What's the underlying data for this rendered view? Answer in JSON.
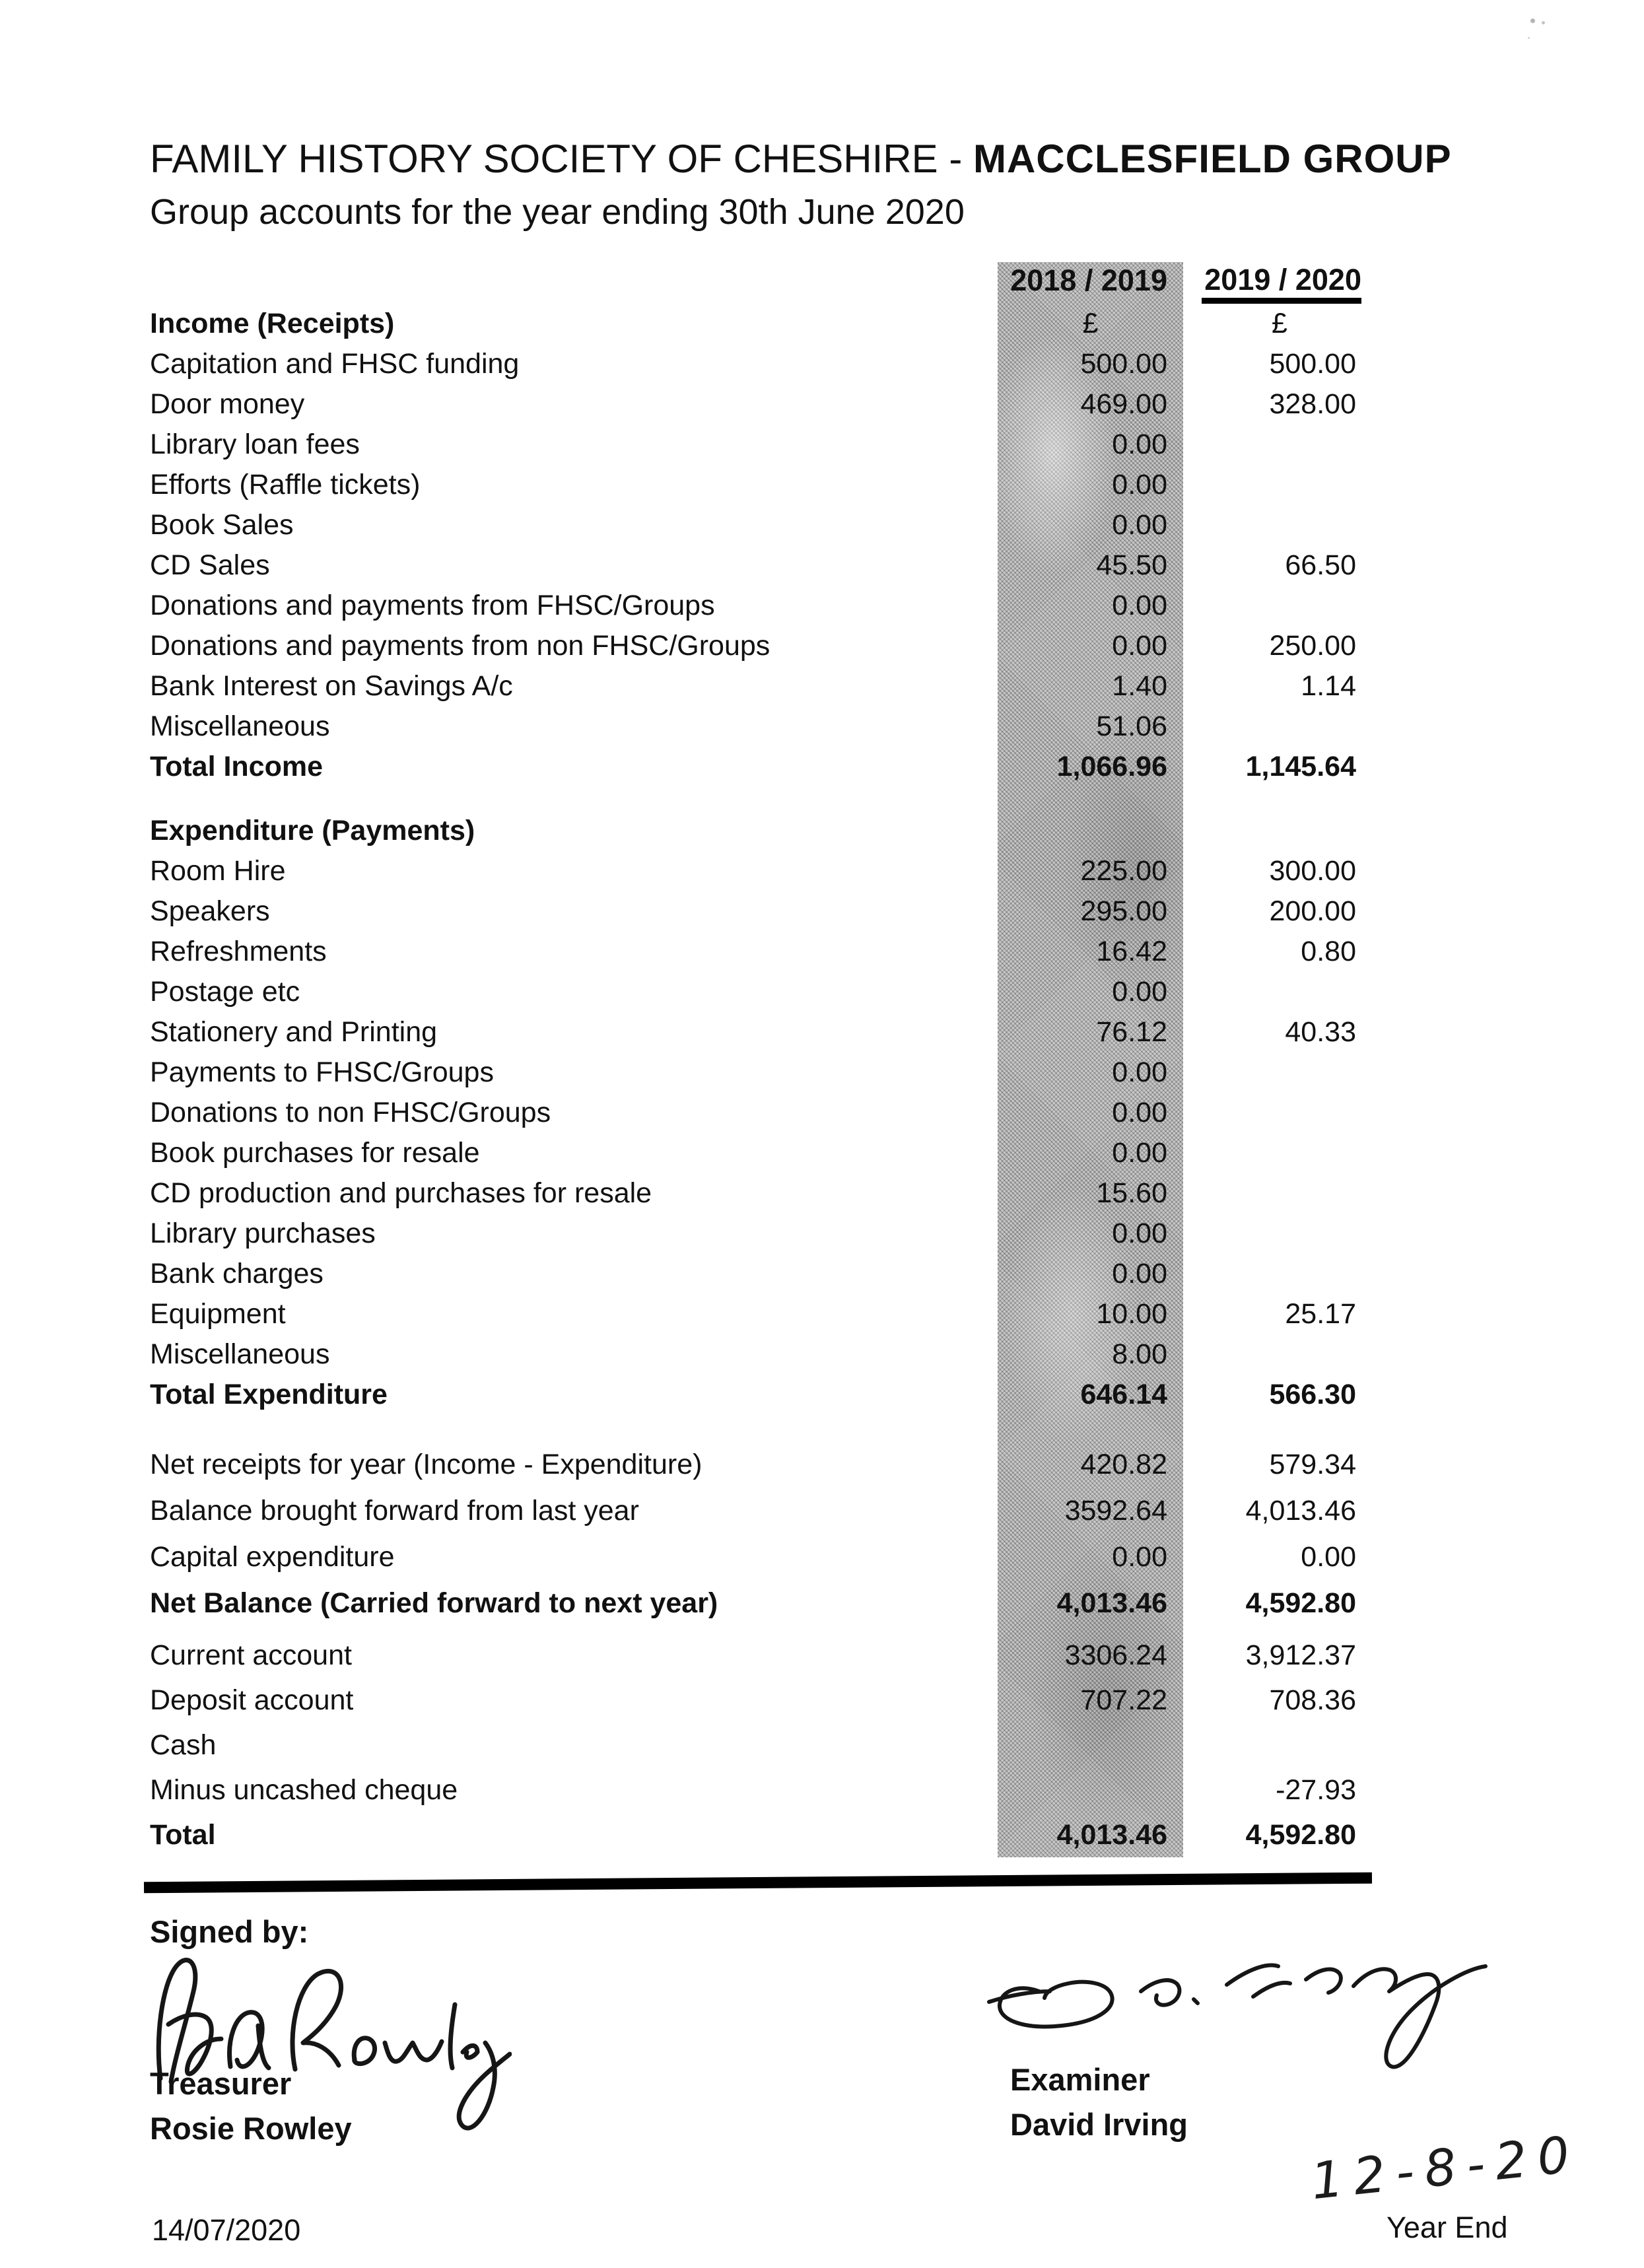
{
  "colors": {
    "paper": "#ffffff",
    "ink": "#111111",
    "band": "#c9c9c9"
  },
  "page": {
    "title_regular": "FAMILY HISTORY SOCIETY OF CHESHIRE - ",
    "title_bold": "MACCLESFIELD GROUP",
    "subtitle": "Group accounts for the year ending 30th June 2020"
  },
  "table": {
    "col_headers": [
      "2018 / 2019",
      "2019 / 2020"
    ],
    "currency_symbol": "£",
    "sections": [
      {
        "name": "income",
        "rows": [
          {
            "label": "Income (Receipts)",
            "bold": true,
            "center_values": true,
            "c1": "£",
            "c2": "£"
          },
          {
            "label": "Capitation and FHSC funding",
            "c1": "500.00",
            "c2": "500.00"
          },
          {
            "label": "Door money",
            "c1": "469.00",
            "c2": "328.00"
          },
          {
            "label": "Library loan fees",
            "c1": "0.00",
            "c2": ""
          },
          {
            "label": "Efforts (Raffle tickets)",
            "c1": "0.00",
            "c2": ""
          },
          {
            "label": "Book Sales",
            "c1": "0.00",
            "c2": ""
          },
          {
            "label": "CD Sales",
            "c1": "45.50",
            "c2": "66.50"
          },
          {
            "label": "Donations and payments from FHSC/Groups",
            "c1": "0.00",
            "c2": ""
          },
          {
            "label": "Donations and payments from non FHSC/Groups",
            "c1": "0.00",
            "c2": "250.00"
          },
          {
            "label": "Bank Interest on Savings A/c",
            "c1": "1.40",
            "c2": "1.14"
          },
          {
            "label": "Miscellaneous",
            "c1": "51.06",
            "c2": ""
          },
          {
            "label": "Total Income",
            "bold": true,
            "c1": "1,066.96",
            "c2": "1,145.64"
          }
        ]
      },
      {
        "name": "expenditure",
        "rows": [
          {
            "label": "Expenditure (Payments)",
            "bold": true,
            "c1": "",
            "c2": ""
          },
          {
            "label": "Room Hire",
            "c1": "225.00",
            "c2": "300.00"
          },
          {
            "label": "Speakers",
            "c1": "295.00",
            "c2": "200.00"
          },
          {
            "label": "Refreshments",
            "c1": "16.42",
            "c2": "0.80"
          },
          {
            "label": "Postage etc",
            "c1": "0.00",
            "c2": ""
          },
          {
            "label": "Stationery and Printing",
            "c1": "76.12",
            "c2": "40.33"
          },
          {
            "label": "Payments to FHSC/Groups",
            "c1": "0.00",
            "c2": ""
          },
          {
            "label": "Donations to non FHSC/Groups",
            "c1": "0.00",
            "c2": ""
          },
          {
            "label": "Book purchases for resale",
            "c1": "0.00",
            "c2": ""
          },
          {
            "label": "CD production and purchases for resale",
            "c1": "15.60",
            "c2": ""
          },
          {
            "label": "Library purchases",
            "c1": "0.00",
            "c2": ""
          },
          {
            "label": "Bank charges",
            "c1": "0.00",
            "c2": ""
          },
          {
            "label": "Equipment",
            "c1": "10.00",
            "c2": "25.17"
          },
          {
            "label": "Miscellaneous",
            "c1": "8.00",
            "c2": ""
          },
          {
            "label": "Total Expenditure",
            "bold": true,
            "c1": "646.14",
            "c2": "566.30"
          }
        ]
      },
      {
        "name": "summary",
        "rows": [
          {
            "label": "Net receipts for year (Income - Expenditure)",
            "c1": "420.82",
            "c2": "579.34"
          },
          {
            "label": "Balance brought forward from last year",
            "c1": "3592.64",
            "c2": "4,013.46"
          },
          {
            "label": "Capital expenditure",
            "c1": "0.00",
            "c2": "0.00"
          },
          {
            "label": "Net Balance (Carried forward to next year)",
            "bold": true,
            "c1": "4,013.46",
            "c2": "4,592.80"
          }
        ]
      },
      {
        "name": "accounts",
        "rows": [
          {
            "label": "Current account",
            "c1": "3306.24",
            "c2": "3,912.37"
          },
          {
            "label": "Deposit account",
            "c1": "707.22",
            "c2": "708.36"
          },
          {
            "label": "Cash",
            "c1": "",
            "c2": ""
          },
          {
            "label": "Minus uncashed cheque",
            "c1": "",
            "c2": "-27.93"
          },
          {
            "label": "Total",
            "bold": true,
            "c1": "4,013.46",
            "c2": "4,592.80"
          }
        ]
      }
    ]
  },
  "signatures": {
    "signed_by_label": "Signed by:",
    "treasurer_role": "Treasurer",
    "treasurer_name": "Rosie Rowley",
    "examiner_role": "Examiner",
    "examiner_name": "David Irving",
    "examiner_date": "12-8-20"
  },
  "footer": {
    "date": "14/07/2020",
    "year_end": "Year End"
  }
}
